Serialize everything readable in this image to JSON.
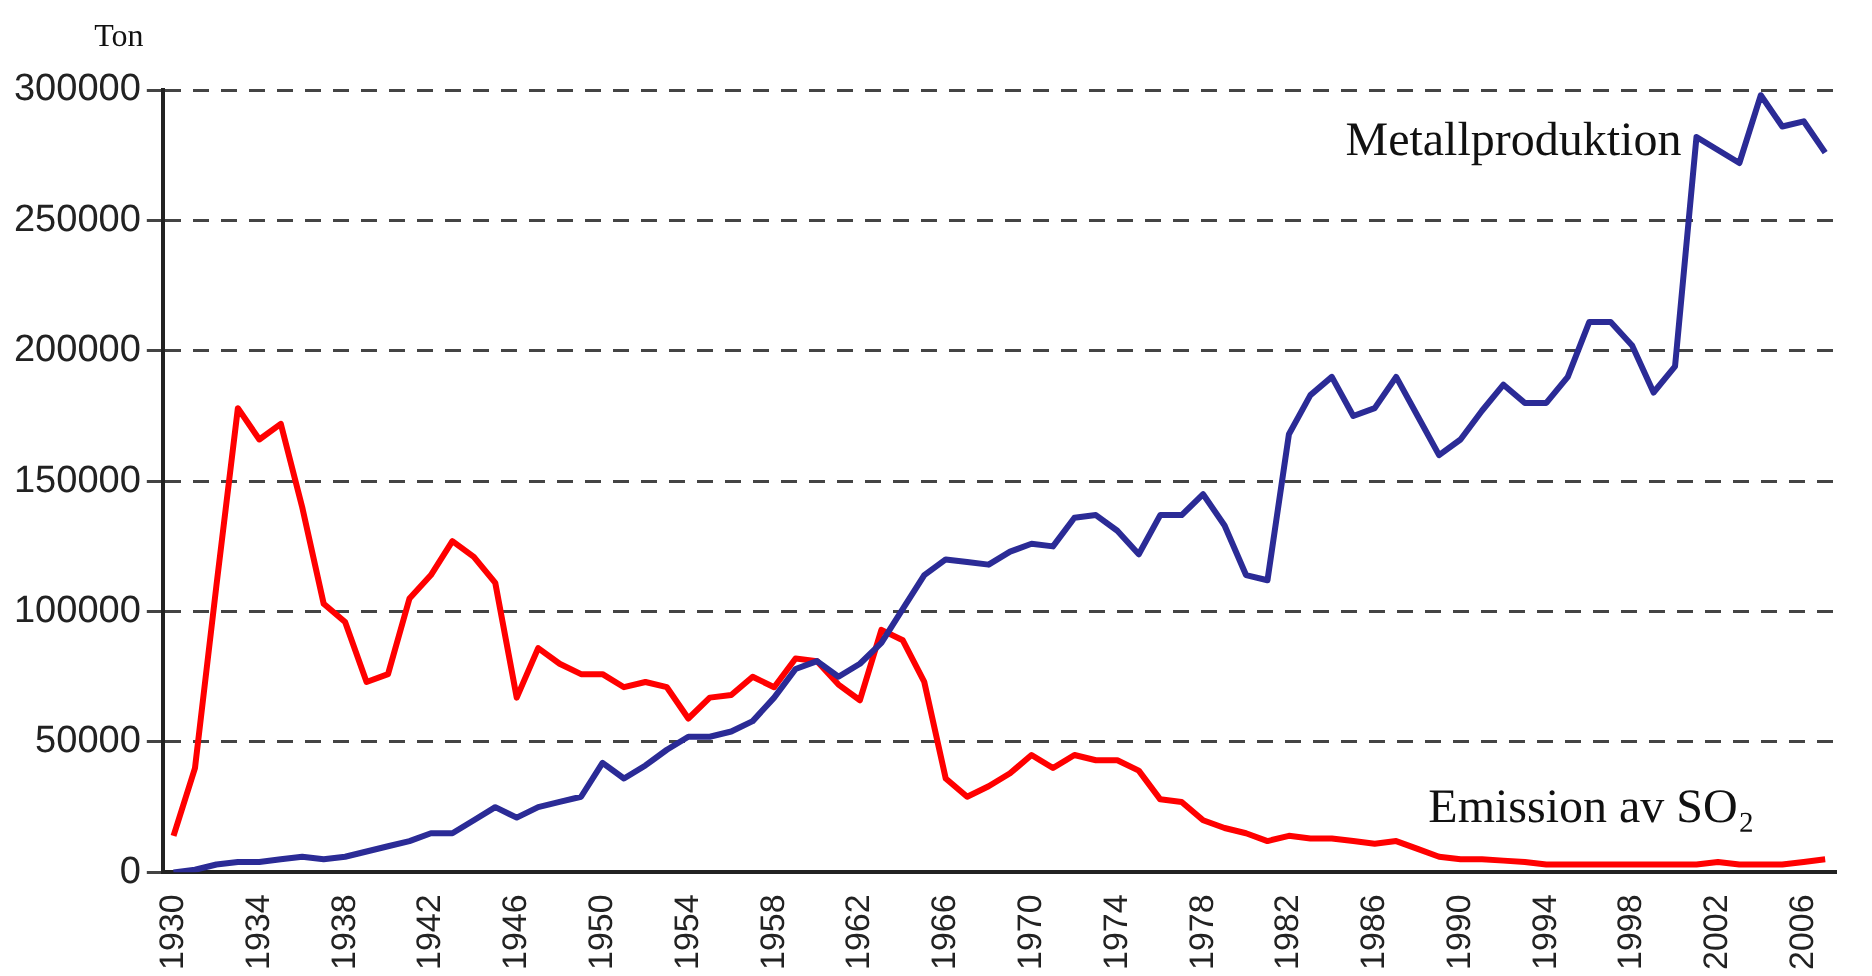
{
  "chart_data": {
    "type": "line",
    "ylabel": "Ton",
    "categories": [
      "1930",
      null,
      null,
      null,
      "1934",
      null,
      null,
      null,
      "1938",
      null,
      null,
      null,
      "1942",
      null,
      null,
      null,
      "1946",
      null,
      null,
      null,
      "1950",
      null,
      null,
      null,
      "1954",
      null,
      null,
      null,
      "1958",
      null,
      null,
      null,
      "1962",
      null,
      null,
      null,
      "1966",
      null,
      null,
      null,
      "1970",
      null,
      null,
      null,
      "1974",
      null,
      null,
      null,
      "1978",
      null,
      null,
      null,
      "1982",
      null,
      null,
      null,
      "1986",
      null,
      null,
      null,
      "1990",
      null,
      null,
      null,
      "1994",
      null,
      null,
      null,
      "1998",
      null,
      null,
      null,
      "2002",
      null,
      null,
      null,
      "2006",
      null
    ],
    "series": [
      {
        "name": "Metallproduktion",
        "color": "#2b2b96",
        "values": [
          0,
          1000,
          3000,
          4000,
          4000,
          5000,
          6000,
          5000,
          6000,
          8000,
          10000,
          12000,
          15000,
          15000,
          20000,
          25000,
          21000,
          25000,
          27000,
          29000,
          42000,
          36000,
          41000,
          47000,
          52000,
          52000,
          54000,
          58000,
          67000,
          78000,
          81000,
          75000,
          80000,
          88000,
          101000,
          114000,
          120000,
          119000,
          118000,
          123000,
          126000,
          125000,
          136000,
          137000,
          131000,
          122000,
          137000,
          137000,
          145000,
          133000,
          114000,
          112000,
          168000,
          183000,
          190000,
          175000,
          178000,
          190000,
          175000,
          160000,
          166000,
          177000,
          187000,
          180000,
          180000,
          190000,
          211000,
          211000,
          202000,
          184000,
          194000,
          282000,
          277000,
          272000,
          298000,
          286000,
          288000,
          276000
        ]
      },
      {
        "name": "Emission av SO₂",
        "color": "#ff0000",
        "values": [
          14000,
          40000,
          110000,
          178000,
          166000,
          172000,
          140000,
          103000,
          96000,
          73000,
          76000,
          105000,
          114000,
          127000,
          121000,
          111000,
          67000,
          86000,
          80000,
          76000,
          76000,
          71000,
          73000,
          71000,
          59000,
          67000,
          68000,
          75000,
          71000,
          82000,
          81000,
          72000,
          66000,
          93000,
          89000,
          73000,
          36000,
          29000,
          33000,
          38000,
          45000,
          40000,
          45000,
          43000,
          43000,
          39000,
          28000,
          27000,
          20000,
          17000,
          15000,
          12000,
          14000,
          13000,
          13000,
          12000,
          11000,
          12000,
          9000,
          6000,
          5000,
          5000,
          4500,
          4000,
          3000,
          3000,
          3000,
          3000,
          3000,
          3000,
          3000,
          3000,
          4000,
          3000,
          3000,
          3000,
          4000,
          5000
        ]
      }
    ],
    "ylim": [
      0,
      300000
    ],
    "yticks": [
      0,
      50000,
      100000,
      150000,
      200000,
      250000,
      300000
    ],
    "grid": "y",
    "legend": false,
    "marker": "none",
    "line_style": "solid"
  }
}
